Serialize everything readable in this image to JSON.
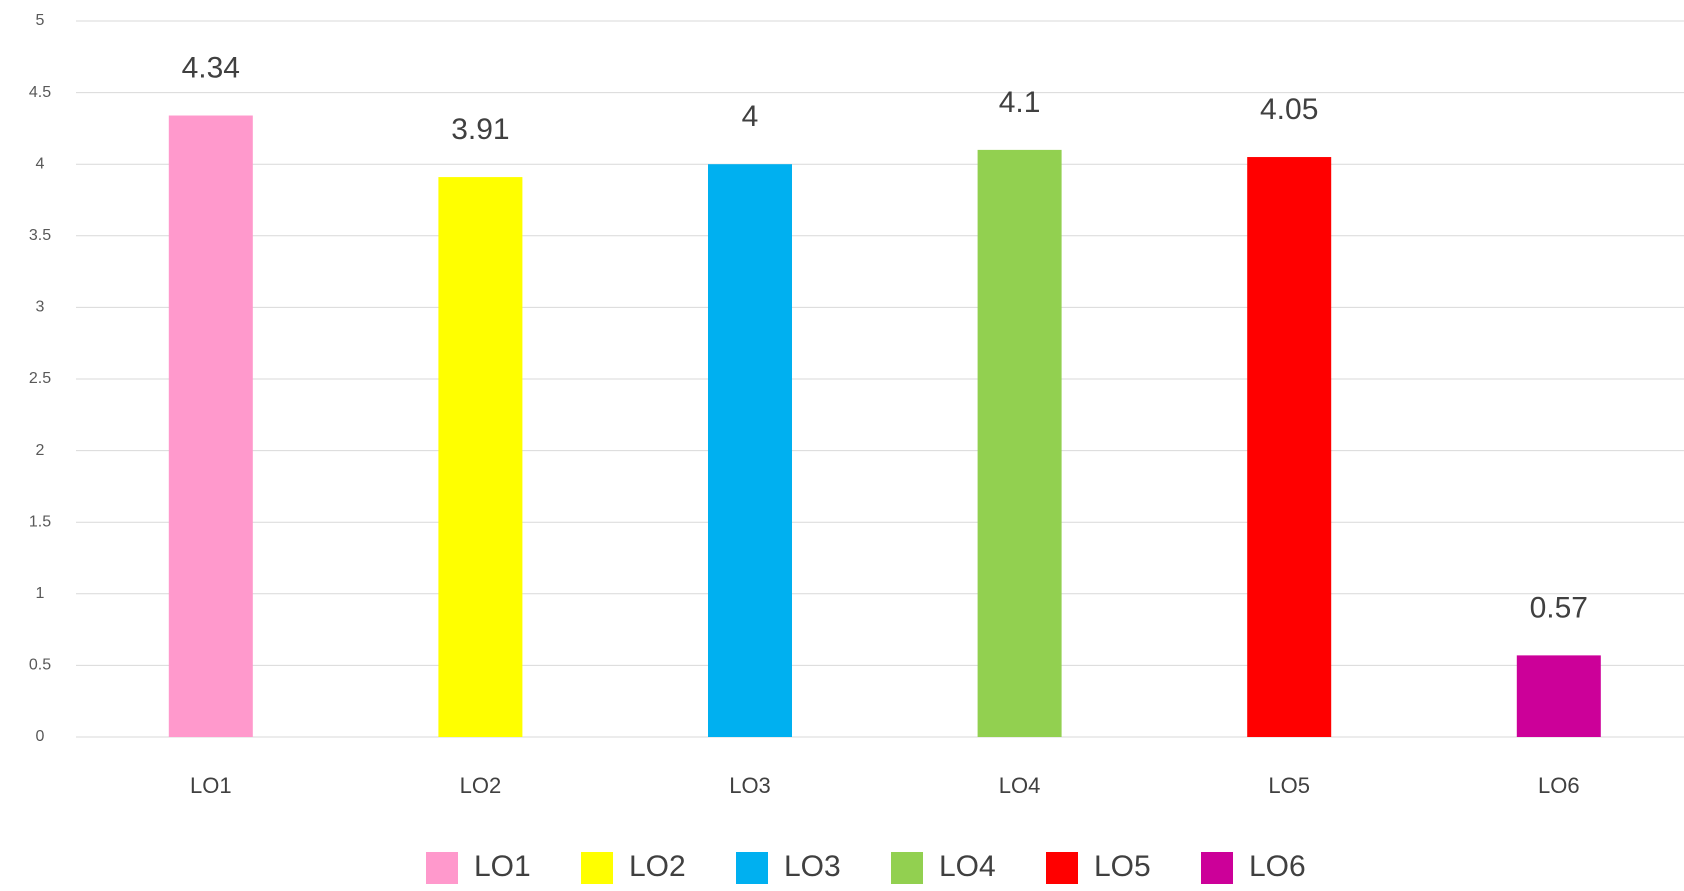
{
  "chart_data": {
    "type": "bar",
    "categories": [
      "LO1",
      "LO2",
      "LO3",
      "LO4",
      "LO5",
      "LO6"
    ],
    "values": [
      4.34,
      3.91,
      4,
      4.1,
      4.05,
      0.57
    ],
    "colors": [
      "#ff99cc",
      "#ffff00",
      "#00b0f0",
      "#92d050",
      "#ff0000",
      "#cc0099"
    ],
    "ylim": [
      0,
      5
    ],
    "yticks": [
      0,
      0.5,
      1,
      1.5,
      2,
      2.5,
      3,
      3.5,
      4,
      4.5,
      5
    ],
    "grid": true,
    "legend": "bottom"
  }
}
